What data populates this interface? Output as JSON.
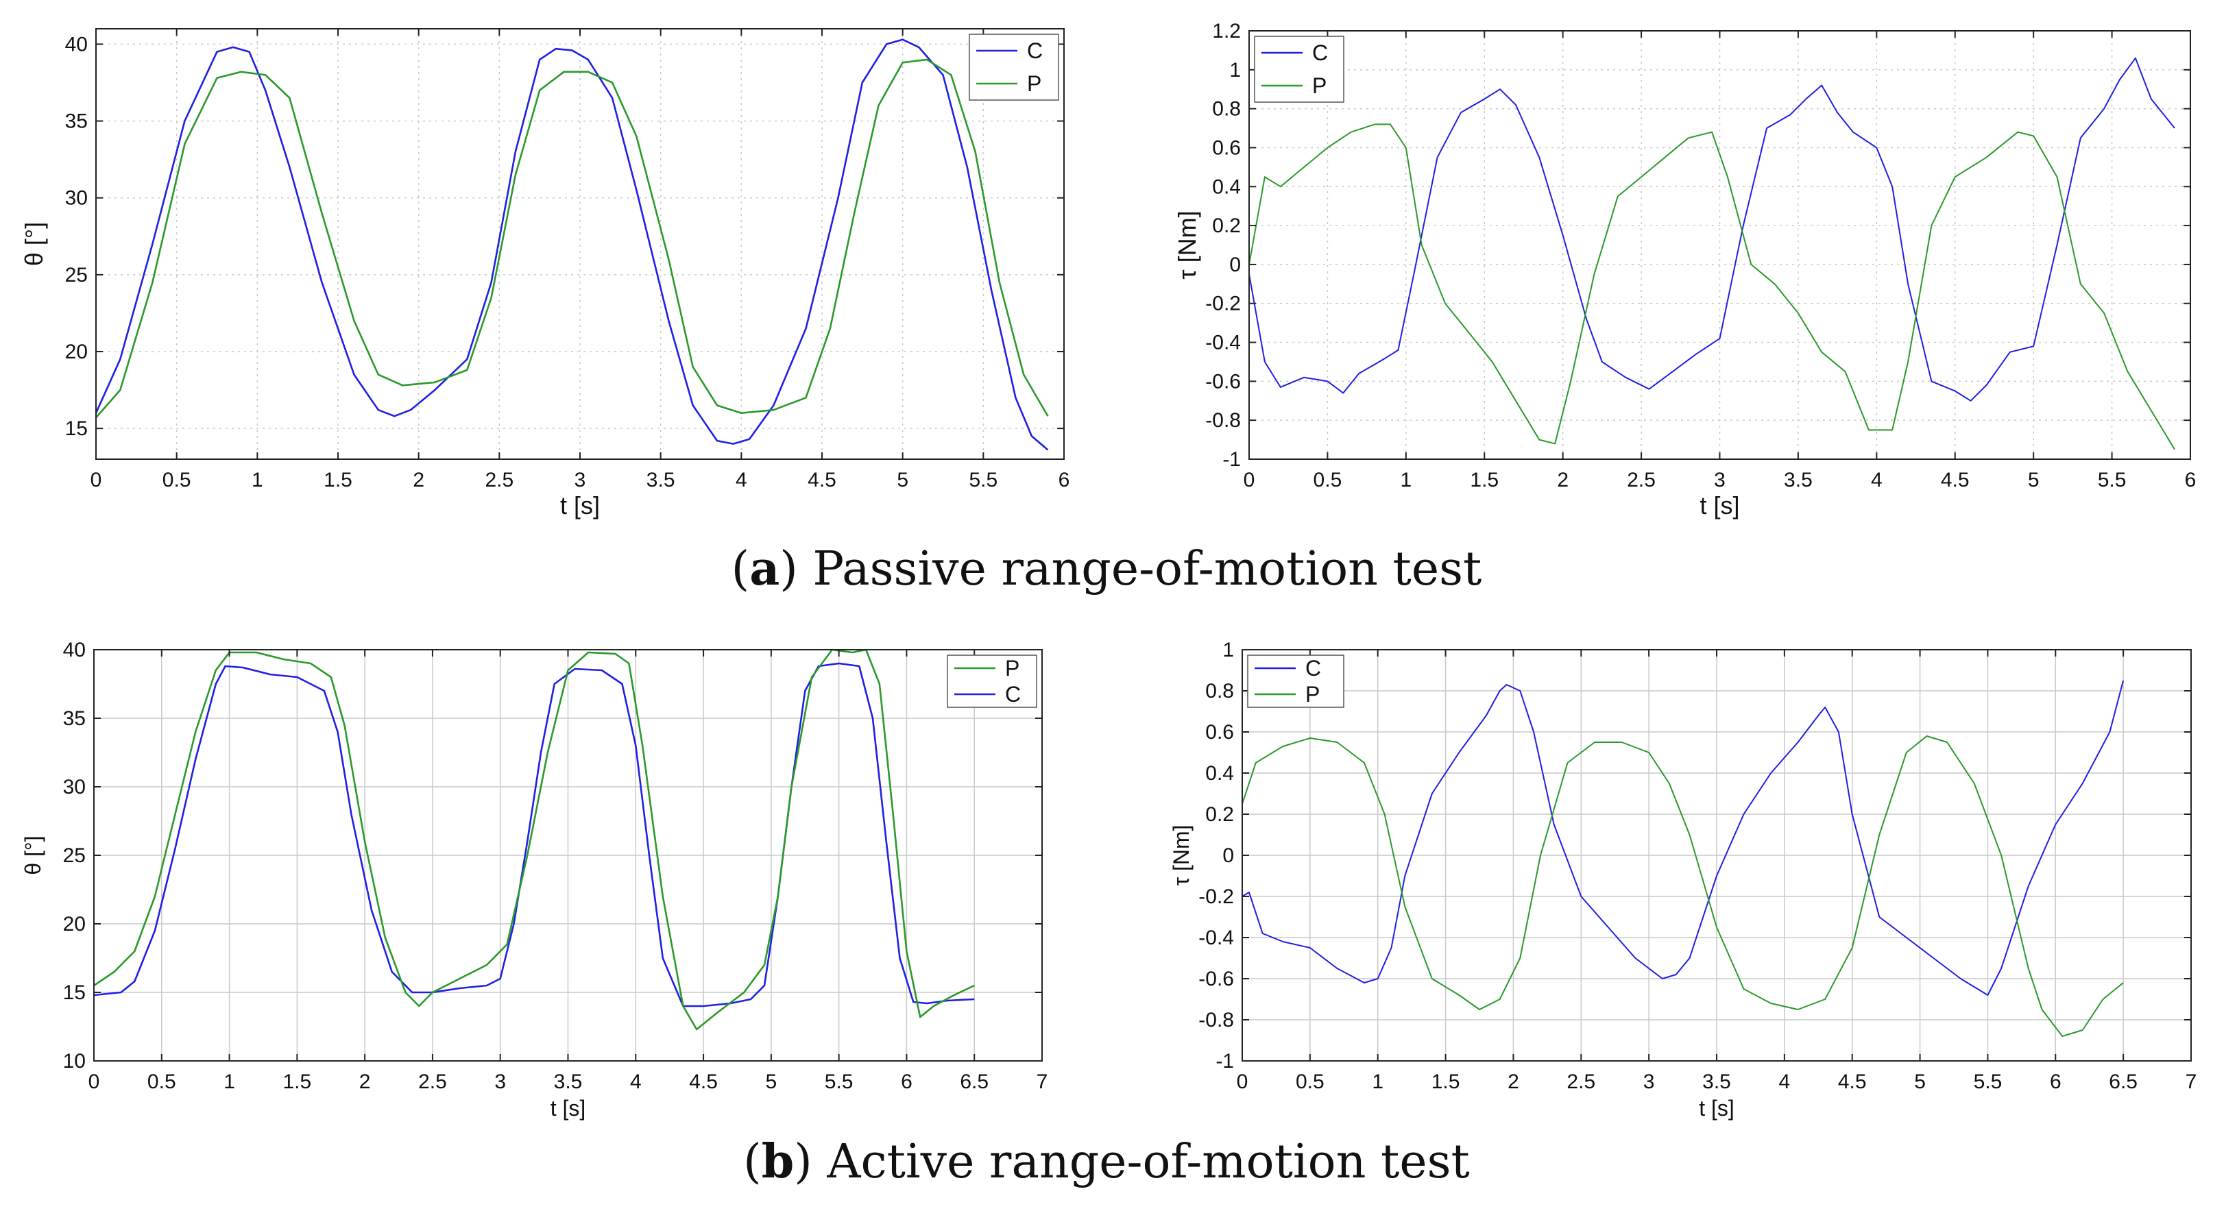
{
  "captions": {
    "a_letter": "a",
    "a_text": " Passive range-of-motion test",
    "b_letter": "b",
    "b_text": " Active range-of-motion test"
  },
  "colors": {
    "C": "#1f1fe6",
    "P": "#2a9a2a",
    "grid": "#c9c9c9",
    "axis": "#222222"
  },
  "chart_data": [
    {
      "id": "a-left",
      "type": "line",
      "xlabel": "t [s]",
      "ylabel": "θ [°]",
      "xlim": [
        0,
        6
      ],
      "ylim": [
        13,
        41
      ],
      "xticks": [
        0,
        0.5,
        1,
        1.5,
        2,
        2.5,
        3,
        3.5,
        4,
        4.5,
        5,
        5.5,
        6
      ],
      "yticks": [
        15,
        20,
        25,
        30,
        35,
        40
      ],
      "grid": true,
      "grid_style": "dotted",
      "legend": "top-right",
      "legend_order": [
        "C",
        "P"
      ],
      "series": [
        {
          "name": "C",
          "x": [
            0,
            0.15,
            0.35,
            0.55,
            0.75,
            0.85,
            0.95,
            1.05,
            1.2,
            1.4,
            1.6,
            1.75,
            1.85,
            1.95,
            2.1,
            2.3,
            2.45,
            2.6,
            2.75,
            2.85,
            2.95,
            3.05,
            3.2,
            3.35,
            3.55,
            3.7,
            3.85,
            3.95,
            4.05,
            4.2,
            4.4,
            4.6,
            4.75,
            4.9,
            5.0,
            5.1,
            5.25,
            5.4,
            5.55,
            5.7,
            5.8,
            5.9
          ],
          "y": [
            16.0,
            19.5,
            27.0,
            35.0,
            39.5,
            39.8,
            39.5,
            37.0,
            32.0,
            24.5,
            18.5,
            16.2,
            15.8,
            16.2,
            17.5,
            19.5,
            24.5,
            33.0,
            39.0,
            39.7,
            39.6,
            39.0,
            36.5,
            30.5,
            22.0,
            16.5,
            14.2,
            14.0,
            14.3,
            16.5,
            21.5,
            30.0,
            37.5,
            40.0,
            40.3,
            39.8,
            38.0,
            32.0,
            24.0,
            17.0,
            14.5,
            13.6
          ]
        },
        {
          "name": "P",
          "x": [
            0,
            0.15,
            0.35,
            0.55,
            0.75,
            0.9,
            1.05,
            1.2,
            1.4,
            1.6,
            1.75,
            1.9,
            2.1,
            2.3,
            2.45,
            2.6,
            2.75,
            2.9,
            3.05,
            3.2,
            3.35,
            3.55,
            3.7,
            3.85,
            4.0,
            4.2,
            4.4,
            4.55,
            4.7,
            4.85,
            5.0,
            5.15,
            5.3,
            5.45,
            5.6,
            5.75,
            5.9
          ],
          "y": [
            15.7,
            17.5,
            24.5,
            33.5,
            37.8,
            38.2,
            38.0,
            36.5,
            29.0,
            22.0,
            18.5,
            17.8,
            18.0,
            18.8,
            23.5,
            31.5,
            37.0,
            38.2,
            38.2,
            37.5,
            34.0,
            26.0,
            19.0,
            16.5,
            16.0,
            16.2,
            17.0,
            21.5,
            29.0,
            36.0,
            38.8,
            39.0,
            38.0,
            33.0,
            24.5,
            18.5,
            15.8
          ]
        }
      ]
    },
    {
      "id": "a-right",
      "type": "line",
      "xlabel": "t [s]",
      "ylabel": "τ [Nm]",
      "xlim": [
        0,
        6
      ],
      "ylim": [
        -1,
        1.2
      ],
      "xticks": [
        0,
        0.5,
        1,
        1.5,
        2,
        2.5,
        3,
        3.5,
        4,
        4.5,
        5,
        5.5,
        6
      ],
      "yticks": [
        -1,
        -0.8,
        -0.6,
        -0.4,
        -0.2,
        0,
        0.2,
        0.4,
        0.6,
        0.8,
        1,
        1.2
      ],
      "grid": true,
      "grid_style": "dotted",
      "legend": "top-left",
      "legend_order": [
        "C",
        "P"
      ],
      "series": [
        {
          "name": "C",
          "x": [
            0,
            0.1,
            0.2,
            0.35,
            0.5,
            0.6,
            0.7,
            0.85,
            0.95,
            1.05,
            1.2,
            1.35,
            1.5,
            1.6,
            1.7,
            1.85,
            2.0,
            2.15,
            2.25,
            2.4,
            2.55,
            2.7,
            2.85,
            3.0,
            3.15,
            3.3,
            3.45,
            3.55,
            3.65,
            3.75,
            3.85,
            4.0,
            4.1,
            4.2,
            4.35,
            4.5,
            4.6,
            4.7,
            4.85,
            5.0,
            5.15,
            5.3,
            5.45,
            5.55,
            5.65,
            5.75,
            5.9
          ],
          "y": [
            -0.05,
            -0.5,
            -0.63,
            -0.58,
            -0.6,
            -0.66,
            -0.56,
            -0.49,
            -0.44,
            -0.05,
            0.55,
            0.78,
            0.85,
            0.9,
            0.82,
            0.55,
            0.15,
            -0.28,
            -0.5,
            -0.58,
            -0.64,
            -0.55,
            -0.46,
            -0.38,
            0.2,
            0.7,
            0.77,
            0.85,
            0.92,
            0.78,
            0.68,
            0.6,
            0.4,
            -0.1,
            -0.6,
            -0.65,
            -0.7,
            -0.62,
            -0.45,
            -0.42,
            0.1,
            0.65,
            0.8,
            0.95,
            1.06,
            0.85,
            0.7
          ]
        },
        {
          "name": "P",
          "x": [
            0,
            0.1,
            0.2,
            0.35,
            0.5,
            0.65,
            0.8,
            0.9,
            1.0,
            1.1,
            1.25,
            1.4,
            1.55,
            1.7,
            1.85,
            1.95,
            2.05,
            2.2,
            2.35,
            2.5,
            2.65,
            2.8,
            2.95,
            3.05,
            3.2,
            3.35,
            3.5,
            3.65,
            3.8,
            3.95,
            4.1,
            4.2,
            4.35,
            4.5,
            4.7,
            4.9,
            5.0,
            5.15,
            5.3,
            5.45,
            5.6,
            5.75,
            5.9
          ],
          "y": [
            0.0,
            0.45,
            0.4,
            0.5,
            0.6,
            0.68,
            0.72,
            0.72,
            0.6,
            0.1,
            -0.2,
            -0.35,
            -0.5,
            -0.7,
            -0.9,
            -0.92,
            -0.6,
            -0.05,
            0.35,
            0.45,
            0.55,
            0.65,
            0.68,
            0.45,
            0.0,
            -0.1,
            -0.25,
            -0.45,
            -0.55,
            -0.85,
            -0.85,
            -0.5,
            0.2,
            0.45,
            0.55,
            0.68,
            0.66,
            0.45,
            -0.1,
            -0.25,
            -0.55,
            -0.75,
            -0.95
          ]
        }
      ]
    },
    {
      "id": "b-left",
      "type": "line",
      "xlabel": "t [s]",
      "ylabel": "θ [°]",
      "xlim": [
        0,
        7
      ],
      "ylim": [
        10,
        40
      ],
      "xticks": [
        0,
        0.5,
        1,
        1.5,
        2,
        2.5,
        3,
        3.5,
        4,
        4.5,
        5,
        5.5,
        6,
        6.5,
        7
      ],
      "yticks": [
        10,
        15,
        20,
        25,
        30,
        35,
        40
      ],
      "grid": true,
      "grid_style": "solid",
      "legend": "top-right",
      "legend_order": [
        "P",
        "C"
      ],
      "series": [
        {
          "name": "C",
          "x": [
            0,
            0.2,
            0.3,
            0.45,
            0.6,
            0.75,
            0.9,
            0.97,
            1.1,
            1.3,
            1.5,
            1.7,
            1.8,
            1.9,
            2.05,
            2.2,
            2.35,
            2.5,
            2.7,
            2.9,
            3.0,
            3.1,
            3.2,
            3.3,
            3.4,
            3.55,
            3.75,
            3.9,
            4.0,
            4.1,
            4.2,
            4.35,
            4.5,
            4.7,
            4.85,
            4.95,
            5.05,
            5.15,
            5.25,
            5.35,
            5.5,
            5.65,
            5.75,
            5.85,
            5.95,
            6.05,
            6.15,
            6.3,
            6.5
          ],
          "y": [
            14.8,
            15.0,
            15.8,
            19.5,
            25.5,
            32.0,
            37.5,
            38.8,
            38.7,
            38.2,
            38.0,
            37.0,
            34.0,
            28.0,
            21.0,
            16.5,
            15.0,
            15.0,
            15.3,
            15.5,
            16.0,
            20.0,
            26.0,
            32.5,
            37.5,
            38.6,
            38.5,
            37.5,
            33.0,
            25.0,
            17.5,
            14.0,
            14.0,
            14.2,
            14.5,
            15.5,
            22.0,
            30.0,
            37.0,
            38.8,
            39.0,
            38.8,
            35.0,
            26.0,
            17.5,
            14.3,
            14.2,
            14.4,
            14.5
          ]
        },
        {
          "name": "P",
          "x": [
            0,
            0.15,
            0.3,
            0.45,
            0.6,
            0.75,
            0.9,
            1.0,
            1.2,
            1.4,
            1.6,
            1.75,
            1.85,
            2.0,
            2.15,
            2.3,
            2.4,
            2.5,
            2.7,
            2.9,
            3.05,
            3.2,
            3.35,
            3.5,
            3.65,
            3.85,
            3.95,
            4.05,
            4.2,
            4.35,
            4.45,
            4.6,
            4.8,
            4.95,
            5.05,
            5.15,
            5.3,
            5.45,
            5.6,
            5.7,
            5.8,
            5.9,
            6.0,
            6.1,
            6.2,
            6.35,
            6.5
          ],
          "y": [
            15.5,
            16.5,
            18.0,
            22.0,
            28.0,
            34.0,
            38.5,
            39.8,
            39.8,
            39.3,
            39.0,
            38.0,
            34.5,
            26.0,
            19.0,
            15.0,
            14.0,
            15.0,
            16.0,
            17.0,
            18.5,
            25.0,
            32.5,
            38.5,
            39.8,
            39.7,
            39.0,
            33.0,
            22.0,
            14.0,
            12.3,
            13.5,
            15.0,
            17.0,
            22.0,
            30.0,
            38.0,
            40.0,
            39.8,
            40.0,
            37.5,
            28.0,
            18.0,
            13.2,
            14.0,
            14.8,
            15.5
          ]
        }
      ]
    },
    {
      "id": "b-right",
      "type": "line",
      "xlabel": "t [s]",
      "ylabel": "τ [Nm]",
      "xlim": [
        0,
        7
      ],
      "ylim": [
        -1,
        1
      ],
      "xticks": [
        0,
        0.5,
        1,
        1.5,
        2,
        2.5,
        3,
        3.5,
        4,
        4.5,
        5,
        5.5,
        6,
        6.5,
        7
      ],
      "yticks": [
        -1,
        -0.8,
        -0.6,
        -0.4,
        -0.2,
        0,
        0.2,
        0.4,
        0.6,
        0.8,
        1
      ],
      "grid": true,
      "grid_style": "solid",
      "legend": "top-left",
      "legend_order": [
        "C",
        "P"
      ],
      "series": [
        {
          "name": "C",
          "x": [
            0,
            0.05,
            0.15,
            0.3,
            0.5,
            0.7,
            0.9,
            1.0,
            1.1,
            1.2,
            1.4,
            1.6,
            1.8,
            1.9,
            1.95,
            2.05,
            2.15,
            2.3,
            2.5,
            2.7,
            2.9,
            3.1,
            3.2,
            3.3,
            3.5,
            3.7,
            3.9,
            4.1,
            4.25,
            4.3,
            4.4,
            4.5,
            4.7,
            4.9,
            5.1,
            5.3,
            5.5,
            5.6,
            5.8,
            6.0,
            6.2,
            6.4,
            6.5
          ],
          "y": [
            -0.2,
            -0.18,
            -0.38,
            -0.42,
            -0.45,
            -0.55,
            -0.62,
            -0.6,
            -0.45,
            -0.1,
            0.3,
            0.5,
            0.68,
            0.8,
            0.83,
            0.8,
            0.6,
            0.15,
            -0.2,
            -0.35,
            -0.5,
            -0.6,
            -0.58,
            -0.5,
            -0.1,
            0.2,
            0.4,
            0.55,
            0.68,
            0.72,
            0.6,
            0.2,
            -0.3,
            -0.4,
            -0.5,
            -0.6,
            -0.68,
            -0.55,
            -0.15,
            0.15,
            0.35,
            0.6,
            0.85
          ]
        },
        {
          "name": "P",
          "x": [
            0,
            0.1,
            0.3,
            0.5,
            0.7,
            0.9,
            1.05,
            1.2,
            1.4,
            1.6,
            1.75,
            1.9,
            2.05,
            2.2,
            2.4,
            2.6,
            2.8,
            3.0,
            3.15,
            3.3,
            3.5,
            3.7,
            3.9,
            4.1,
            4.3,
            4.5,
            4.7,
            4.9,
            5.05,
            5.2,
            5.4,
            5.6,
            5.8,
            5.9,
            6.05,
            6.2,
            6.35,
            6.5
          ],
          "y": [
            0.25,
            0.45,
            0.53,
            0.57,
            0.55,
            0.45,
            0.2,
            -0.25,
            -0.6,
            -0.68,
            -0.75,
            -0.7,
            -0.5,
            0.0,
            0.45,
            0.55,
            0.55,
            0.5,
            0.35,
            0.1,
            -0.35,
            -0.65,
            -0.72,
            -0.75,
            -0.7,
            -0.45,
            0.1,
            0.5,
            0.58,
            0.55,
            0.35,
            0.0,
            -0.55,
            -0.75,
            -0.88,
            -0.85,
            -0.7,
            -0.62
          ]
        }
      ]
    }
  ]
}
